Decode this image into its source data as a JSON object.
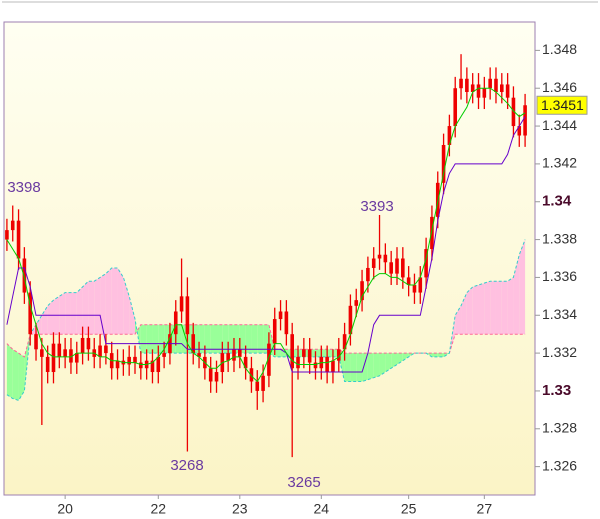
{
  "chart_data": {
    "type": "candlestick",
    "annotations": [
      "3398",
      "3268",
      "3265",
      "3393"
    ],
    "open": [
      1.338,
      1.3385,
      1.339,
      1.337,
      1.3352,
      1.333,
      1.3322,
      1.3318,
      1.331,
      1.3325,
      1.3318,
      1.3322,
      1.3315,
      1.332,
      1.3328,
      1.3322,
      1.3318,
      1.3324,
      1.332,
      1.3312,
      1.3316,
      1.3314,
      1.3318,
      1.3315,
      1.3312,
      1.3316,
      1.331,
      1.3318,
      1.332,
      1.333,
      1.3342,
      1.335,
      1.333,
      1.332,
      1.3318,
      1.3312,
      1.3305,
      1.331,
      1.332,
      1.3316,
      1.3322,
      1.3318,
      1.3312,
      1.3305,
      1.33,
      1.3308,
      1.3325,
      1.3338,
      1.3342,
      1.333,
      1.3312,
      1.3318,
      1.3322,
      1.3315,
      1.3312,
      1.3318,
      1.331,
      1.3316,
      1.3322,
      1.333,
      1.3345,
      1.3348,
      1.3358,
      1.3365,
      1.337,
      1.3372,
      1.3368,
      1.3362,
      1.337,
      1.336,
      1.3356,
      1.3352,
      1.336,
      1.3375,
      1.3392,
      1.341,
      1.343,
      1.344,
      1.346,
      1.3465,
      1.3458,
      1.3462,
      1.3455,
      1.346,
      1.3465,
      1.3458,
      1.3462,
      1.3455,
      1.344,
      1.3435
    ],
    "high": [
      1.3391,
      1.3398,
      1.3396,
      1.3376,
      1.3358,
      1.3336,
      1.3328,
      1.3324,
      1.3331,
      1.3331,
      1.3328,
      1.3328,
      1.3326,
      1.3334,
      1.3334,
      1.3328,
      1.333,
      1.333,
      1.3326,
      1.3322,
      1.3322,
      1.3324,
      1.3324,
      1.3321,
      1.3322,
      1.3322,
      1.3324,
      1.3326,
      1.3336,
      1.3348,
      1.337,
      1.336,
      1.3336,
      1.3326,
      1.3324,
      1.3318,
      1.3316,
      1.3326,
      1.3326,
      1.3328,
      1.3328,
      1.3324,
      1.3318,
      1.3311,
      1.3314,
      1.3331,
      1.3344,
      1.3348,
      1.3348,
      1.3336,
      1.3324,
      1.3328,
      1.3328,
      1.3321,
      1.3324,
      1.3324,
      1.3322,
      1.3328,
      1.3336,
      1.3351,
      1.3354,
      1.3364,
      1.3371,
      1.3376,
      1.3393,
      1.3378,
      1.3374,
      1.3376,
      1.3376,
      1.3366,
      1.3362,
      1.3366,
      1.3381,
      1.3398,
      1.3416,
      1.3436,
      1.3446,
      1.3466,
      1.3478,
      1.3471,
      1.3468,
      1.3468,
      1.3466,
      1.3471,
      1.3471,
      1.3468,
      1.3468,
      1.3461,
      1.3446,
      1.3457
    ],
    "low": [
      1.3374,
      1.3379,
      1.3364,
      1.3346,
      1.3324,
      1.3316,
      1.3282,
      1.3304,
      1.3304,
      1.3312,
      1.3312,
      1.3309,
      1.3309,
      1.3314,
      1.3316,
      1.3312,
      1.3312,
      1.3314,
      1.3306,
      1.3306,
      1.3308,
      1.3308,
      1.3309,
      1.3306,
      1.3306,
      1.3304,
      1.3304,
      1.3312,
      1.3314,
      1.3324,
      1.3336,
      1.3268,
      1.3314,
      1.3312,
      1.3306,
      1.3299,
      1.3299,
      1.3304,
      1.331,
      1.331,
      1.3312,
      1.3306,
      1.3299,
      1.329,
      1.3294,
      1.3302,
      1.3319,
      1.3332,
      1.3324,
      1.3265,
      1.3306,
      1.3312,
      1.3309,
      1.3306,
      1.3306,
      1.3304,
      1.3304,
      1.331,
      1.3316,
      1.3324,
      1.3339,
      1.3342,
      1.3352,
      1.3359,
      1.3364,
      1.3362,
      1.3356,
      1.3356,
      1.3354,
      1.335,
      1.3346,
      1.3346,
      1.3354,
      1.3369,
      1.3386,
      1.3404,
      1.3424,
      1.3434,
      1.3454,
      1.3452,
      1.3452,
      1.3449,
      1.3449,
      1.3454,
      1.3452,
      1.3452,
      1.3449,
      1.3434,
      1.3429,
      1.3429
    ],
    "close": [
      1.3385,
      1.339,
      1.337,
      1.3352,
      1.333,
      1.3322,
      1.3318,
      1.331,
      1.3325,
      1.3318,
      1.3322,
      1.3315,
      1.332,
      1.3328,
      1.3322,
      1.3318,
      1.3324,
      1.332,
      1.3312,
      1.3316,
      1.3314,
      1.3318,
      1.3315,
      1.3312,
      1.3316,
      1.331,
      1.3318,
      1.332,
      1.333,
      1.3342,
      1.335,
      1.333,
      1.332,
      1.3318,
      1.3312,
      1.3305,
      1.331,
      1.332,
      1.3316,
      1.3322,
      1.3318,
      1.3312,
      1.3305,
      1.33,
      1.3308,
      1.3325,
      1.3338,
      1.3342,
      1.333,
      1.3312,
      1.3318,
      1.3322,
      1.3315,
      1.3312,
      1.3318,
      1.331,
      1.3316,
      1.3322,
      1.333,
      1.3345,
      1.3348,
      1.3358,
      1.3365,
      1.337,
      1.3372,
      1.3368,
      1.3362,
      1.337,
      1.336,
      1.3356,
      1.3352,
      1.336,
      1.3375,
      1.3392,
      1.341,
      1.343,
      1.344,
      1.346,
      1.3465,
      1.3458,
      1.3462,
      1.3455,
      1.346,
      1.3465,
      1.3458,
      1.3462,
      1.3455,
      1.344,
      1.3435,
      1.3451
    ],
    "tenkan": [
      1.338,
      1.3375,
      1.337,
      1.336,
      1.3345,
      1.3335,
      1.3325,
      1.332,
      1.3318,
      1.3318,
      1.3318,
      1.3318,
      1.332,
      1.332,
      1.332,
      1.332,
      1.3318,
      1.3318,
      1.3316,
      1.3316,
      1.3315,
      1.3315,
      1.3315,
      1.3314,
      1.3314,
      1.3315,
      1.3318,
      1.3322,
      1.3328,
      1.3335,
      1.3335,
      1.3325,
      1.332,
      1.3318,
      1.3315,
      1.3312,
      1.3312,
      1.3315,
      1.3316,
      1.3318,
      1.3318,
      1.3312,
      1.3308,
      1.3305,
      1.331,
      1.3318,
      1.3325,
      1.3325,
      1.332,
      1.3316,
      1.3314,
      1.3314,
      1.3314,
      1.3314,
      1.3315,
      1.3315,
      1.3316,
      1.3318,
      1.3322,
      1.333,
      1.334,
      1.335,
      1.3355,
      1.336,
      1.3362,
      1.3362,
      1.336,
      1.336,
      1.3358,
      1.3356,
      1.3356,
      1.336,
      1.337,
      1.3385,
      1.34,
      1.3415,
      1.343,
      1.344,
      1.3445,
      1.345,
      1.3458,
      1.346,
      1.346,
      1.346,
      1.3458,
      1.3455,
      1.3452,
      1.3448,
      1.3445,
      1.3447
    ],
    "kijun": [
      1.3335,
      1.335,
      1.3365,
      1.3365,
      1.3355,
      1.334,
      1.334,
      1.334,
      1.334,
      1.334,
      1.334,
      1.334,
      1.334,
      1.334,
      1.334,
      1.334,
      1.334,
      1.3325,
      1.3325,
      1.3325,
      1.3325,
      1.3325,
      1.3325,
      1.3325,
      1.3325,
      1.3325,
      1.3325,
      1.3325,
      1.3325,
      1.3325,
      1.3325,
      1.3322,
      1.3322,
      1.3322,
      1.3322,
      1.3322,
      1.3322,
      1.3322,
      1.3322,
      1.3322,
      1.3322,
      1.3322,
      1.3322,
      1.3322,
      1.3322,
      1.3322,
      1.3322,
      1.3322,
      1.332,
      1.331,
      1.331,
      1.331,
      1.331,
      1.331,
      1.331,
      1.331,
      1.331,
      1.331,
      1.331,
      1.331,
      1.331,
      1.331,
      1.332,
      1.3335,
      1.334,
      1.334,
      1.334,
      1.334,
      1.334,
      1.334,
      1.334,
      1.334,
      1.3355,
      1.337,
      1.339,
      1.3405,
      1.3415,
      1.342,
      1.342,
      1.342,
      1.342,
      1.342,
      1.342,
      1.342,
      1.342,
      1.342,
      1.3425,
      1.3435,
      1.344,
      1.3445
    ],
    "span_a": [
      1.3325,
      1.3322,
      1.332,
      1.3318,
      1.333,
      1.333,
      1.333,
      1.333,
      1.333,
      1.333,
      1.333,
      1.333,
      1.333,
      1.333,
      1.333,
      1.333,
      1.333,
      1.333,
      1.333,
      1.333,
      1.333,
      1.333,
      1.333,
      1.3335,
      1.3335,
      1.3335,
      1.3335,
      1.3335,
      1.3335,
      1.3335,
      1.3335,
      1.3335,
      1.3335,
      1.3335,
      1.3335,
      1.3335,
      1.3335,
      1.3335,
      1.3335,
      1.3335,
      1.3335,
      1.3335,
      1.3335,
      1.3335,
      1.3335,
      1.3335,
      1.3322,
      1.3322,
      1.3322,
      1.3322,
      1.3322,
      1.3322,
      1.3322,
      1.3322,
      1.3322,
      1.3322,
      1.3322,
      1.3322,
      1.332,
      1.332,
      1.332,
      1.332,
      1.332,
      1.332,
      1.332,
      1.332,
      1.332,
      1.332,
      1.332,
      1.332,
      1.332,
      1.332,
      1.332,
      1.332,
      1.332,
      1.332,
      1.332,
      1.333,
      1.333,
      1.333,
      1.333,
      1.333,
      1.333,
      1.333,
      1.333,
      1.333,
      1.333,
      1.333,
      1.333,
      1.333
    ],
    "span_b": [
      1.3298,
      1.3296,
      1.3295,
      1.33,
      1.333,
      1.3335,
      1.334,
      1.3345,
      1.3348,
      1.335,
      1.3352,
      1.3352,
      1.3352,
      1.3355,
      1.3358,
      1.3358,
      1.336,
      1.3362,
      1.3365,
      1.3365,
      1.336,
      1.335,
      1.3338,
      1.332,
      1.332,
      1.332,
      1.332,
      1.332,
      1.332,
      1.332,
      1.332,
      1.332,
      1.332,
      1.332,
      1.332,
      1.332,
      1.332,
      1.332,
      1.332,
      1.332,
      1.332,
      1.332,
      1.332,
      1.332,
      1.332,
      1.332,
      1.3318,
      1.3318,
      1.3318,
      1.3318,
      1.3318,
      1.3318,
      1.3318,
      1.3318,
      1.3318,
      1.3318,
      1.3318,
      1.3318,
      1.3305,
      1.3305,
      1.3305,
      1.3305,
      1.3306,
      1.3307,
      1.3308,
      1.331,
      1.3312,
      1.3314,
      1.3316,
      1.3318,
      1.332,
      1.332,
      1.332,
      1.3318,
      1.3318,
      1.3318,
      1.332,
      1.334,
      1.3345,
      1.3352,
      1.3355,
      1.3356,
      1.3357,
      1.3358,
      1.3358,
      1.3358,
      1.3358,
      1.336,
      1.3372,
      1.338
    ],
    "colors": {
      "candle": "#ee0000",
      "tenkan": "#00cc00",
      "kijun": "#6600cc",
      "span_a": "#ff6699",
      "span_b": "#33cccc",
      "cloud_up": "#99ff99",
      "cloud_down": "#ffc0e0",
      "last_price": "#ffff00"
    },
    "ylim": [
      1.3245,
      1.3495
    ],
    "yticks": [
      1.326,
      1.328,
      1.33,
      1.332,
      1.334,
      1.336,
      1.338,
      1.34,
      1.342,
      1.344,
      1.346,
      1.348
    ],
    "xticks": [
      {
        "value": 10,
        "label": "20"
      },
      {
        "value": 26,
        "label": "22"
      },
      {
        "value": 40,
        "label": "23"
      },
      {
        "value": 54,
        "label": "24"
      },
      {
        "value": 69,
        "label": "25"
      },
      {
        "value": 82,
        "label": "27"
      }
    ]
  }
}
